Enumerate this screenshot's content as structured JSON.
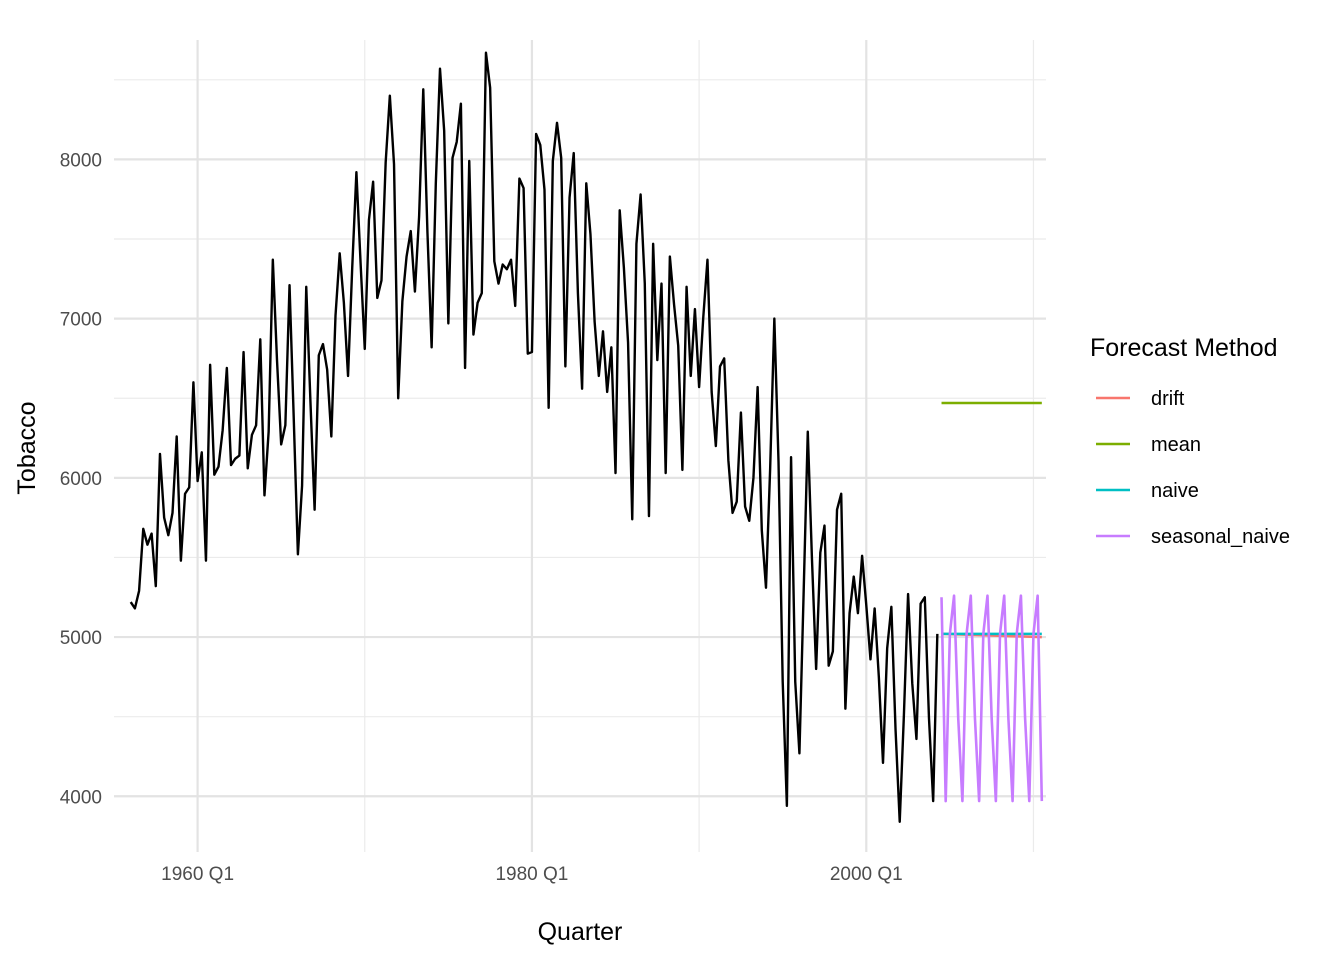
{
  "chart_data": {
    "type": "line",
    "xlabel": "Quarter",
    "ylabel": "Tobacco",
    "x_range": [
      1955.0,
      2010.75
    ],
    "ylim": [
      3650,
      8750
    ],
    "x_ticks": [
      {
        "value": 1960,
        "label": "1960 Q1"
      },
      {
        "value": 1980,
        "label": "1980 Q1"
      },
      {
        "value": 2000,
        "label": "2000 Q1"
      }
    ],
    "x_minor_ticks": [
      1970,
      1990,
      2010
    ],
    "y_ticks": [
      4000,
      5000,
      6000,
      7000,
      8000
    ],
    "y_minor_ticks": [
      4500,
      5500,
      6500,
      7500,
      8500
    ],
    "grid": true,
    "legend": {
      "title": "Forecast Method",
      "position": "right",
      "entries": [
        {
          "key": "drift",
          "label": "drift",
          "color": "#F8766D"
        },
        {
          "key": "mean",
          "label": "mean",
          "color": "#7CAE00"
        },
        {
          "key": "naive",
          "label": "naive",
          "color": "#00BFC4"
        },
        {
          "key": "seasonal_naive",
          "label": "seasonal_naive",
          "color": "#C77CFF"
        }
      ]
    },
    "history": {
      "start": 1956.0,
      "step": 0.25,
      "color": "#000000",
      "values": [
        5220,
        5180,
        5290,
        5680,
        5580,
        5650,
        5320,
        6150,
        5750,
        5640,
        5780,
        6260,
        5480,
        5900,
        5940,
        6600,
        5980,
        6160,
        5480,
        6710,
        6020,
        6070,
        6300,
        6690,
        6080,
        6120,
        6140,
        6790,
        6060,
        6270,
        6330,
        6870,
        5890,
        6290,
        7370,
        6740,
        6210,
        6330,
        7210,
        6380,
        5520,
        5950,
        7200,
        6480,
        5800,
        6770,
        6840,
        6680,
        6260,
        7020,
        7410,
        7100,
        6640,
        7320,
        7920,
        7350,
        6810,
        7620,
        7860,
        7130,
        7240,
        7980,
        8400,
        7970,
        6500,
        7110,
        7390,
        7550,
        7170,
        7640,
        8440,
        7540,
        6820,
        7850,
        8570,
        8180,
        6970,
        8010,
        8110,
        8350,
        6690,
        7990,
        6900,
        7100,
        7160,
        8670,
        8450,
        7360,
        7220,
        7340,
        7310,
        7370,
        7080,
        7880,
        7820,
        6780,
        6790,
        8160,
        8090,
        7810,
        6440,
        7990,
        8230,
        8010,
        6700,
        7760,
        8040,
        7160,
        6560,
        7850,
        7530,
        6980,
        6640,
        6920,
        6540,
        6820,
        6030,
        7680,
        7320,
        6850,
        5740,
        7470,
        7780,
        7220,
        5760,
        7470,
        6740,
        7220,
        6030,
        7390,
        7090,
        6830,
        6050,
        7200,
        6640,
        7060,
        6570,
        7010,
        7370,
        6540,
        6200,
        6700,
        6750,
        6110,
        5780,
        5850,
        6410,
        5820,
        5730,
        6000,
        6570,
        5670,
        5310,
        6060,
        7000,
        6100,
        4720,
        3940,
        6130,
        4720,
        4270,
        5270,
        6290,
        5490,
        4800,
        5530,
        5700,
        4820,
        4910,
        5800,
        5900,
        4550,
        5150,
        5380,
        5150,
        5510,
        5200,
        4860,
        5180,
        4750,
        4210,
        4930,
        5190,
        4420,
        3840,
        4510,
        5270,
        4710,
        4360,
        5210,
        5250,
        4490,
        3970,
        5020
      ]
    },
    "forecast": {
      "start": 2004.5,
      "end": 2010.5,
      "series": [
        {
          "name": "drift",
          "color": "#F8766D",
          "values": [
            5020,
            5000
          ]
        },
        {
          "name": "mean",
          "color": "#7CAE00",
          "values": [
            6470,
            6470
          ]
        },
        {
          "name": "naive",
          "color": "#00BFC4",
          "values": [
            5020,
            5020
          ]
        },
        {
          "name": "seasonal_naive",
          "color": "#C77CFF",
          "values": [
            5250,
            3970,
            5020,
            5260,
            4490,
            3970,
            5020,
            5260,
            4490,
            3970,
            5020,
            5260,
            4490,
            3970,
            5020,
            5260,
            4490,
            3970,
            5020,
            5260,
            4490,
            3970,
            5020,
            5260,
            3970
          ]
        }
      ]
    }
  }
}
